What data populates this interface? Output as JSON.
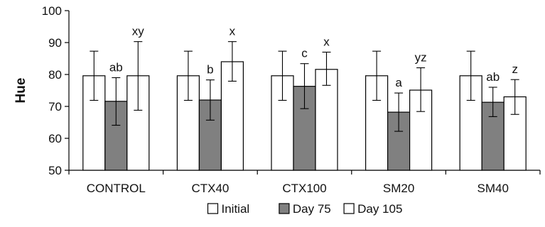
{
  "chart_data": {
    "type": "bar",
    "ylabel": "Hue",
    "xlabel": "",
    "ylim": [
      50,
      100
    ],
    "yticks": [
      50,
      60,
      70,
      80,
      90,
      100
    ],
    "categories": [
      "CONTROL",
      "CTX40",
      "CTX100",
      "SM20",
      "SM40"
    ],
    "series": [
      {
        "name": "Initial",
        "color": "#ffffff",
        "values": [
          79.6,
          79.6,
          79.6,
          79.6,
          79.6
        ],
        "error_low": [
          71.9,
          71.9,
          71.9,
          71.9,
          71.9
        ],
        "error_high": [
          87.3,
          87.3,
          87.3,
          87.3,
          87.3
        ],
        "labels": [
          "",
          "",
          "",
          "",
          ""
        ]
      },
      {
        "name": "Day 75",
        "color": "#808080",
        "values": [
          71.6,
          72.0,
          76.3,
          68.2,
          71.3
        ],
        "error_low": [
          64.1,
          65.7,
          69.3,
          62.2,
          66.8
        ],
        "error_high": [
          79.0,
          78.3,
          83.4,
          74.2,
          76.0
        ],
        "labels": [
          "ab",
          "b",
          "c",
          "a",
          "ab"
        ]
      },
      {
        "name": "Day 105",
        "color": "#ffffff",
        "values": [
          79.6,
          84.0,
          81.6,
          75.1,
          73.0
        ],
        "error_low": [
          68.8,
          77.9,
          76.6,
          68.4,
          67.5
        ],
        "error_high": [
          90.3,
          90.3,
          87.0,
          82.1,
          78.4
        ],
        "labels": [
          "xy",
          "x",
          "x",
          "yz",
          "z"
        ]
      }
    ],
    "legend_position": "bottom-center",
    "grid": false
  }
}
